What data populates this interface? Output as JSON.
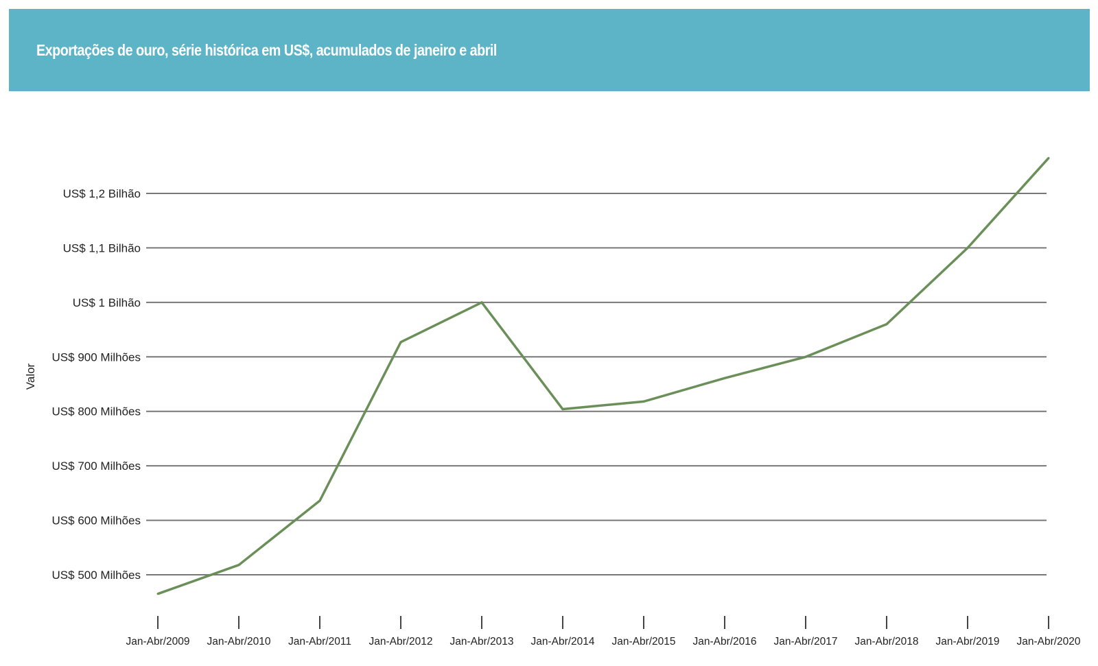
{
  "header": {
    "title": "Exportações de ouro, série histórica em US$, acumulados de janeiro e abril"
  },
  "colors": {
    "header_bg": "#5cb4c6",
    "line": "#6a8f59",
    "grid": "#777777",
    "text": "#222222"
  },
  "chart_data": {
    "type": "line",
    "title": "Exportações de ouro, série histórica em US$, acumulados de janeiro e abril",
    "xlabel": "",
    "ylabel": "Valor",
    "categories": [
      "Jan-Abr/2009",
      "Jan-Abr/2010",
      "Jan-Abr/2011",
      "Jan-Abr/2012",
      "Jan-Abr/2013",
      "Jan-Abr/2014",
      "Jan-Abr/2015",
      "Jan-Abr/2016",
      "Jan-Abr/2017",
      "Jan-Abr/2018",
      "Jan-Abr/2019",
      "Jan-Abr/2020"
    ],
    "series": [
      {
        "values": [
          465,
          518,
          636,
          927,
          1000,
          804,
          818,
          861,
          900,
          960,
          1100,
          1265
        ]
      }
    ],
    "y_ticks": [
      {
        "value": 500,
        "label": "US$ 500 Milhões"
      },
      {
        "value": 600,
        "label": "US$ 600 Milhões"
      },
      {
        "value": 700,
        "label": "US$ 700 Milhões"
      },
      {
        "value": 800,
        "label": "US$ 800 Milhões"
      },
      {
        "value": 900,
        "label": "US$ 900 Milhões"
      },
      {
        "value": 1000,
        "label": "US$ 1 Bilhão"
      },
      {
        "value": 1100,
        "label": "US$ 1,1 Bilhão"
      },
      {
        "value": 1200,
        "label": "US$ 1,2 Bilhão"
      }
    ],
    "ylim": [
      465,
      1265
    ],
    "grid": true,
    "legend": "none"
  }
}
